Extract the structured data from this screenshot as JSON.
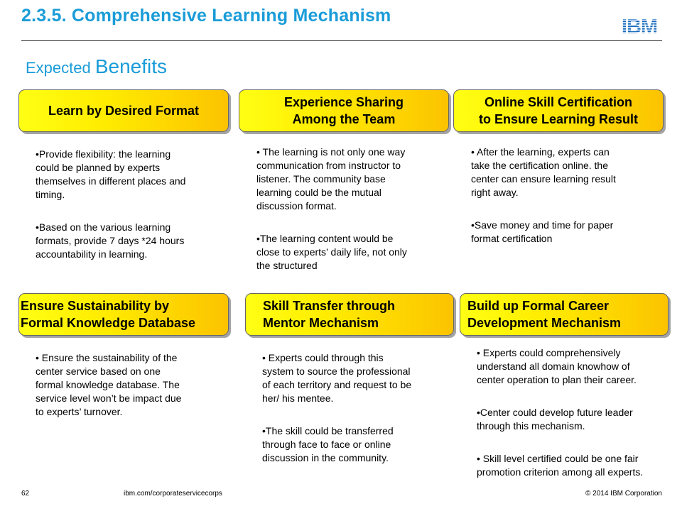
{
  "header": {
    "title": "2.3.5. Comprehensive Learning Mechanism",
    "logo_text": "IBM",
    "subtitle_small": "Expected ",
    "subtitle_big": "Benefits"
  },
  "cards": [
    {
      "heading": [
        "Learn by Desired Format"
      ],
      "bullets": [
        [
          "•Provide flexibility:  the learning",
          "could be planned by experts",
          "themselves in different places and",
          "timing."
        ],
        [
          "•Based on the various learning",
          "formats, provide 7 days *24 hours",
          "accountability in learning."
        ]
      ]
    },
    {
      "heading": [
        "Experience Sharing",
        "Among the Team"
      ],
      "bullets": [
        [
          "• The learning is not only one way",
          "communication from instructor to",
          "listener. The community base",
          "learning could be the mutual",
          "discussion format."
        ],
        [
          "•The learning content would be",
          "close to experts’ daily life, not only",
          "the structured"
        ]
      ]
    },
    {
      "heading": [
        "Online Skill Certification",
        "to Ensure Learning Result"
      ],
      "bullets": [
        [
          "• After the learning, experts can",
          "take the certification online. the",
          "center can ensure learning result",
          "right away."
        ],
        [
          "•Save money and time for paper",
          "format certification"
        ]
      ]
    },
    {
      "heading": [
        "Ensure Sustainability  by",
        "Formal Knowledge Database"
      ],
      "bullets": [
        [
          "• Ensure the sustainability of the",
          "center service based on one",
          "formal knowledge database. The",
          "service level won’t be impact due",
          "to experts’ turnover."
        ]
      ]
    },
    {
      "heading": [
        "Skill Transfer through",
        "Mentor Mechanism"
      ],
      "bullets": [
        [
          "• Experts could through this",
          "system to source the professional",
          "of each territory and request to be",
          "her/ his mentee."
        ],
        [
          "•The skill could be transferred",
          "through face to face or online",
          "discussion in the community."
        ]
      ]
    },
    {
      "heading": [
        "Build up Formal Career",
        "Development Mechanism"
      ],
      "bullets": [
        [
          "• Experts could comprehensively",
          "understand all domain knowhow of",
          "center operation to plan their career."
        ],
        [
          "•Center could develop future leader",
          "through this mechanism."
        ],
        [
          "• Skill level certified could be one fair",
          "promotion criterion among all experts."
        ]
      ]
    }
  ],
  "footer": {
    "page": "62",
    "url": "ibm.com/corporateservicecorps",
    "copyright": "© 2014 IBM Corporation"
  },
  "colors": {
    "title_blue": "#1a9cd8",
    "box_yellow": "#ffff14",
    "box_orange": "#fcc300",
    "ibm_blue": "#1f70c1"
  }
}
